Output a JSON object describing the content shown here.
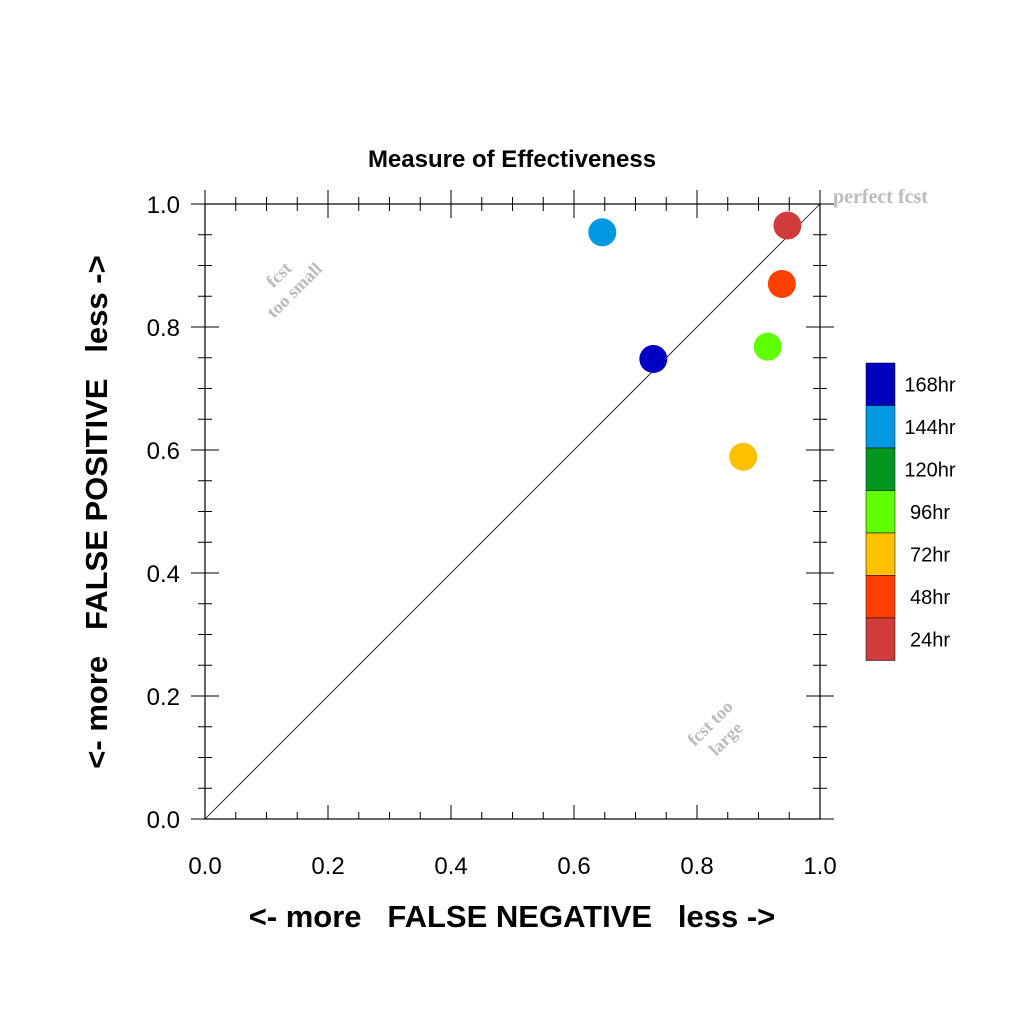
{
  "chart_data": {
    "type": "scatter",
    "title": "Measure of Effectiveness",
    "xlabel": "<- more   FALSE NEGATIVE   less ->",
    "ylabel": "<- more   FALSE POSITIVE   less ->",
    "xlim": [
      0,
      1
    ],
    "ylim": [
      0,
      1
    ],
    "xticks": [
      "0.0",
      "0.2",
      "0.4",
      "0.6",
      "0.8",
      "1.0"
    ],
    "yticks": [
      "0.0",
      "0.2",
      "0.4",
      "0.6",
      "0.8",
      "1.0"
    ],
    "grid": false,
    "diagonal_reference_line": true,
    "annotations": {
      "perfect": "perfect fcst",
      "too_small_line1": "fcst",
      "too_small_line2": "too small",
      "too_large_line1": "fcst too",
      "too_large_line2": "large"
    },
    "legend": {
      "placement": "right",
      "entries": [
        {
          "label": "168hr",
          "color": "#0000c0"
        },
        {
          "label": "144hr",
          "color": "#0098e0"
        },
        {
          "label": "120hr",
          "color": "#009820"
        },
        {
          "label": "96hr",
          "color": "#60ff00"
        },
        {
          "label": "72hr",
          "color": "#ffc000"
        },
        {
          "label": "48hr",
          "color": "#ff4000"
        },
        {
          "label": "24hr",
          "color": "#d03c3c"
        }
      ]
    },
    "points": [
      {
        "series": "24hr",
        "x": 0.947,
        "y": 0.965,
        "color": "#d03c3c"
      },
      {
        "series": "48hr",
        "x": 0.938,
        "y": 0.87,
        "color": "#ff4000"
      },
      {
        "series": "96hr",
        "x": 0.915,
        "y": 0.768,
        "color": "#60ff00"
      },
      {
        "series": "72hr",
        "x": 0.875,
        "y": 0.589,
        "color": "#ffc000"
      },
      {
        "series": "144hr",
        "x": 0.646,
        "y": 0.954,
        "color": "#0098e0"
      },
      {
        "series": "168hr",
        "x": 0.729,
        "y": 0.748,
        "color": "#0000c0"
      }
    ]
  }
}
